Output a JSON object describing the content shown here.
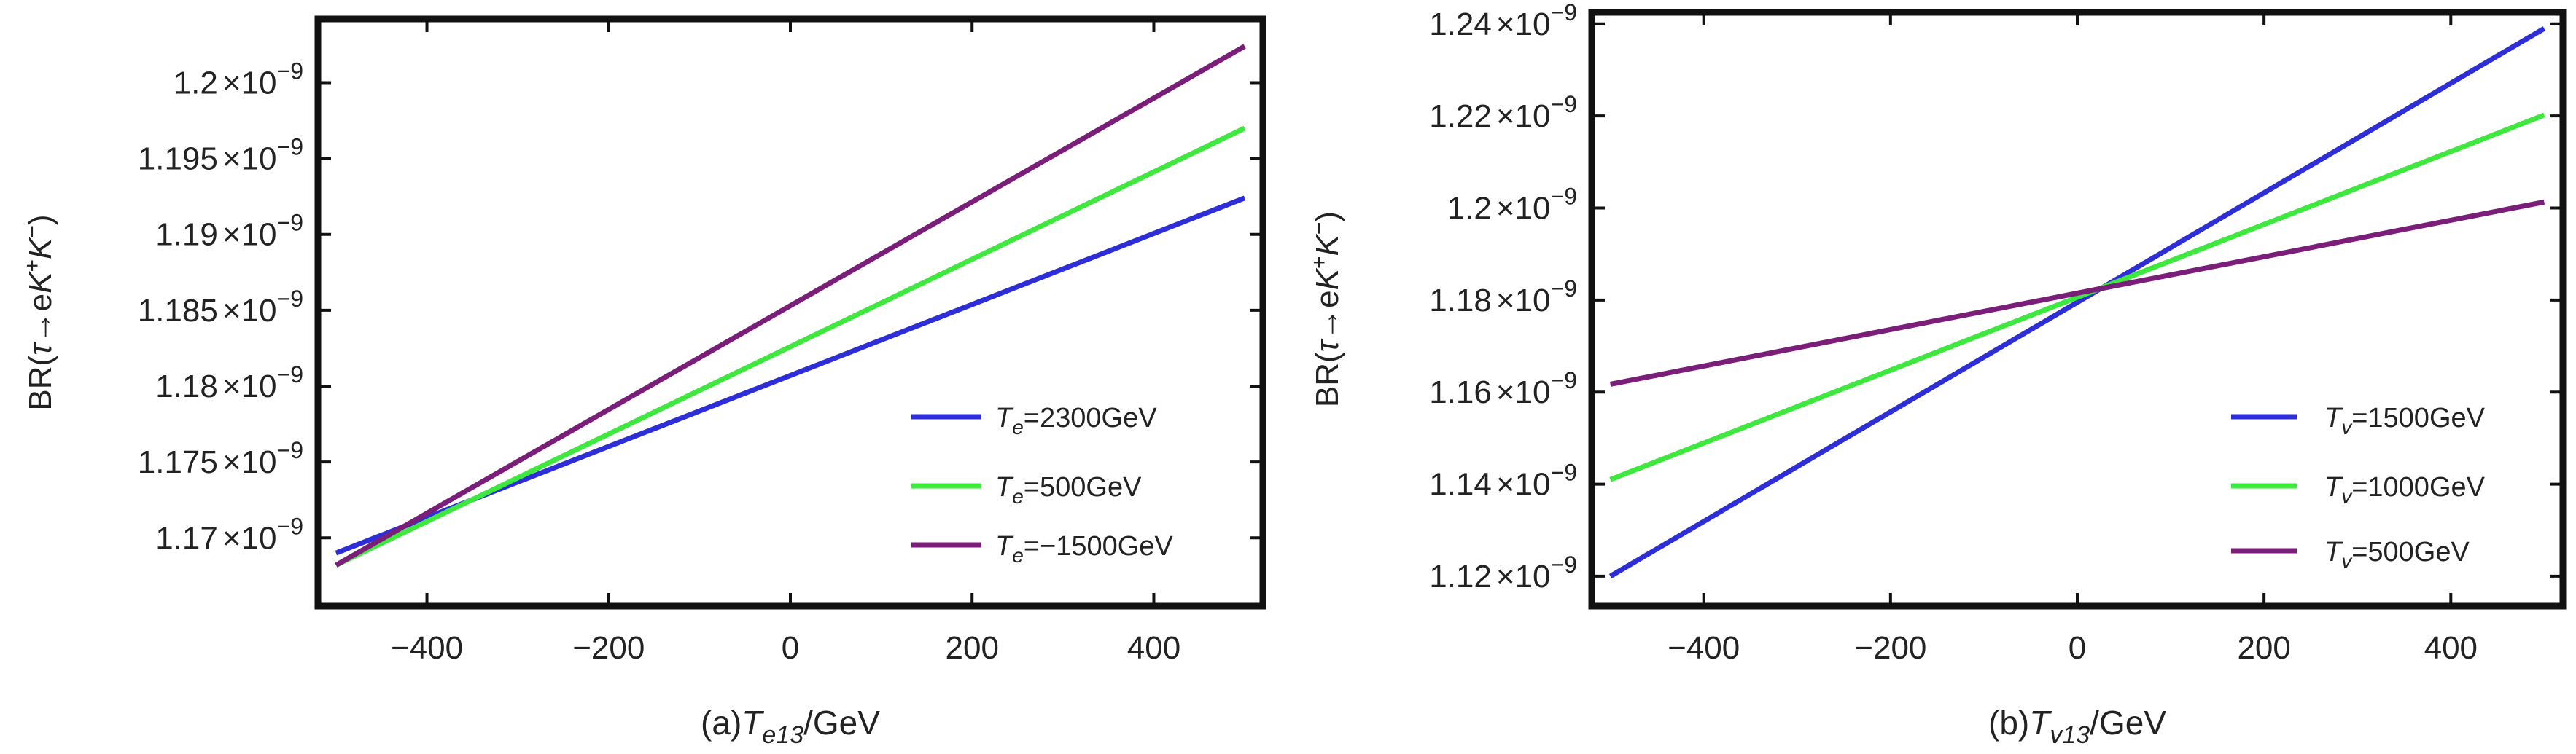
{
  "chart_data": [
    {
      "type": "line",
      "panel": "a",
      "xlabel": "(a)T_e13/GeV",
      "xlabel_parts": {
        "prefix": "(a)",
        "var": "T",
        "sub": "e13",
        "suffix": "/GeV"
      },
      "ylabel_parts": {
        "pre": "BR(",
        "tau": "τ",
        "arrow": "→",
        "e": "e",
        "K1": "K",
        "sup1": "+",
        "K2": "K",
        "sup2": "−",
        "close": ")"
      },
      "xlim": [
        -520,
        520
      ],
      "ylim": [
        1.1655e-09,
        1.2042e-09
      ],
      "xticks": [
        -400,
        -200,
        0,
        200,
        400
      ],
      "xtick_labels": [
        "−400",
        "−200",
        "0",
        "200",
        "400"
      ],
      "yticks": [
        1.17e-09,
        1.175e-09,
        1.18e-09,
        1.185e-09,
        1.19e-09,
        1.195e-09,
        1.2e-09
      ],
      "ytick_mantissas": [
        "1.17",
        "1.175",
        "1.18",
        "1.185",
        "1.19",
        "1.195",
        "1.2"
      ],
      "ytick_times": "×",
      "ytick_base": "10",
      "ytick_exp": "−9",
      "legend_position": "bottom-right",
      "series": [
        {
          "name": "T_e=2300GeV",
          "label_var": "T",
          "label_sub": "e",
          "label_rest": "=2300GeV",
          "color": "#2e2ed8",
          "x": [
            -500,
            500
          ],
          "y": [
            1.169e-09,
            1.1924e-09
          ]
        },
        {
          "name": "T_e=500GeV",
          "label_var": "T",
          "label_sub": "e",
          "label_rest": "=500GeV",
          "color": "#3ee83e",
          "x": [
            -500,
            500
          ],
          "y": [
            1.1682e-09,
            1.197e-09
          ]
        },
        {
          "name": "T_e=−1500GeV",
          "label_var": "T",
          "label_sub": "e",
          "label_rest": "=−1500GeV",
          "color": "#7a1e7a",
          "x": [
            -500,
            500
          ],
          "y": [
            1.1682e-09,
            1.2024e-09
          ]
        }
      ]
    },
    {
      "type": "line",
      "panel": "b",
      "xlabel": "(b)T_v13/GeV",
      "xlabel_parts": {
        "prefix": "(b)",
        "var": "T",
        "sub": "v13",
        "suffix": "/GeV"
      },
      "ylabel_parts": {
        "pre": "BR(",
        "tau": "τ",
        "arrow": "→",
        "e": "e",
        "K1": "K",
        "sup1": "+",
        "K2": "K",
        "sup2": "−",
        "close": ")"
      },
      "xlim": [
        -520,
        520
      ],
      "ylim": [
        1.1135e-09,
        1.2425e-09
      ],
      "xticks": [
        -400,
        -200,
        0,
        200,
        400
      ],
      "xtick_labels": [
        "−400",
        "−200",
        "0",
        "200",
        "400"
      ],
      "yticks": [
        1.12e-09,
        1.14e-09,
        1.16e-09,
        1.18e-09,
        1.2e-09,
        1.22e-09,
        1.24e-09
      ],
      "ytick_mantissas": [
        "1.12",
        "1.14",
        "1.16",
        "1.18",
        "1.2",
        "1.22",
        "1.24"
      ],
      "ytick_times": "×",
      "ytick_base": "10",
      "ytick_exp": "−9",
      "legend_position": "bottom-right",
      "series": [
        {
          "name": "T_v=1500GeV",
          "label_var": "T",
          "label_sub": "v",
          "label_rest": "=1500GeV",
          "color": "#2e2ed8",
          "x": [
            -500,
            500
          ],
          "y": [
            1.12e-09,
            1.239e-09
          ]
        },
        {
          "name": "T_v=1000GeV",
          "label_var": "T",
          "label_sub": "v",
          "label_rest": "=1000GeV",
          "color": "#3ee83e",
          "x": [
            -500,
            500
          ],
          "y": [
            1.141e-09,
            1.2202e-09
          ]
        },
        {
          "name": "T_v=500GeV",
          "label_var": "T",
          "label_sub": "v",
          "label_rest": "=500GeV",
          "color": "#7a1e7a",
          "x": [
            -500,
            500
          ],
          "y": [
            1.1617e-09,
            1.2013e-09
          ]
        }
      ]
    }
  ]
}
